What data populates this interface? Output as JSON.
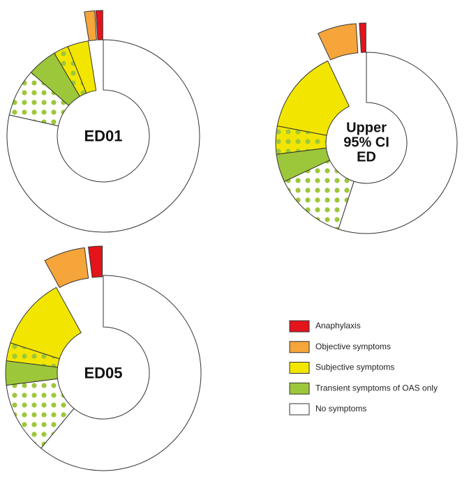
{
  "chart_data": [
    {
      "type": "donut",
      "title": "ED01",
      "categories": [
        "No symptoms",
        null,
        "Transient symptoms of OAS only",
        null,
        "Subjective symptoms",
        "Objective symptoms",
        "Anaphylaxis"
      ],
      "values": [
        78.5,
        8,
        5,
        2.5,
        3.5,
        1.5,
        1
      ],
      "colors": [
        "#ffffff",
        "#ffffff",
        "#9dc73a",
        "#f2e600",
        "#f2e600",
        "#f5a53a",
        "#e3141b"
      ],
      "dotted": [
        false,
        true,
        false,
        true,
        false,
        false,
        false
      ],
      "explode": [
        false,
        false,
        false,
        false,
        false,
        true,
        true
      ],
      "dot_color": "#9dc73a"
    },
    {
      "type": "donut",
      "title": "Upper 95% CI ED",
      "categories": [
        "No symptoms",
        null,
        "Transient symptoms of OAS only",
        null,
        "Subjective symptoms",
        "Objective symptoms",
        "Anaphylaxis"
      ],
      "values": [
        55,
        13,
        5,
        5,
        15,
        6,
        1
      ],
      "colors": [
        "#ffffff",
        "#ffffff",
        "#9dc73a",
        "#f2e600",
        "#f2e600",
        "#f5a53a",
        "#e3141b"
      ],
      "dotted": [
        false,
        true,
        false,
        true,
        false,
        false,
        false
      ],
      "explode": [
        false,
        false,
        false,
        false,
        false,
        true,
        true
      ],
      "dot_color": "#9dc73a"
    },
    {
      "type": "donut",
      "title": "ED05",
      "categories": [
        "No symptoms",
        null,
        "Transient symptoms of OAS only",
        null,
        "Subjective symptoms",
        "Objective symptoms",
        "Anaphylaxis"
      ],
      "values": [
        61,
        12,
        4,
        3,
        12,
        6,
        2
      ],
      "colors": [
        "#ffffff",
        "#ffffff",
        "#9dc73a",
        "#f2e600",
        "#f2e600",
        "#f5a53a",
        "#e3141b"
      ],
      "dotted": [
        false,
        true,
        false,
        true,
        false,
        false,
        false
      ],
      "explode": [
        false,
        false,
        false,
        false,
        false,
        true,
        true
      ],
      "dot_color": "#9dc73a"
    }
  ]
}
